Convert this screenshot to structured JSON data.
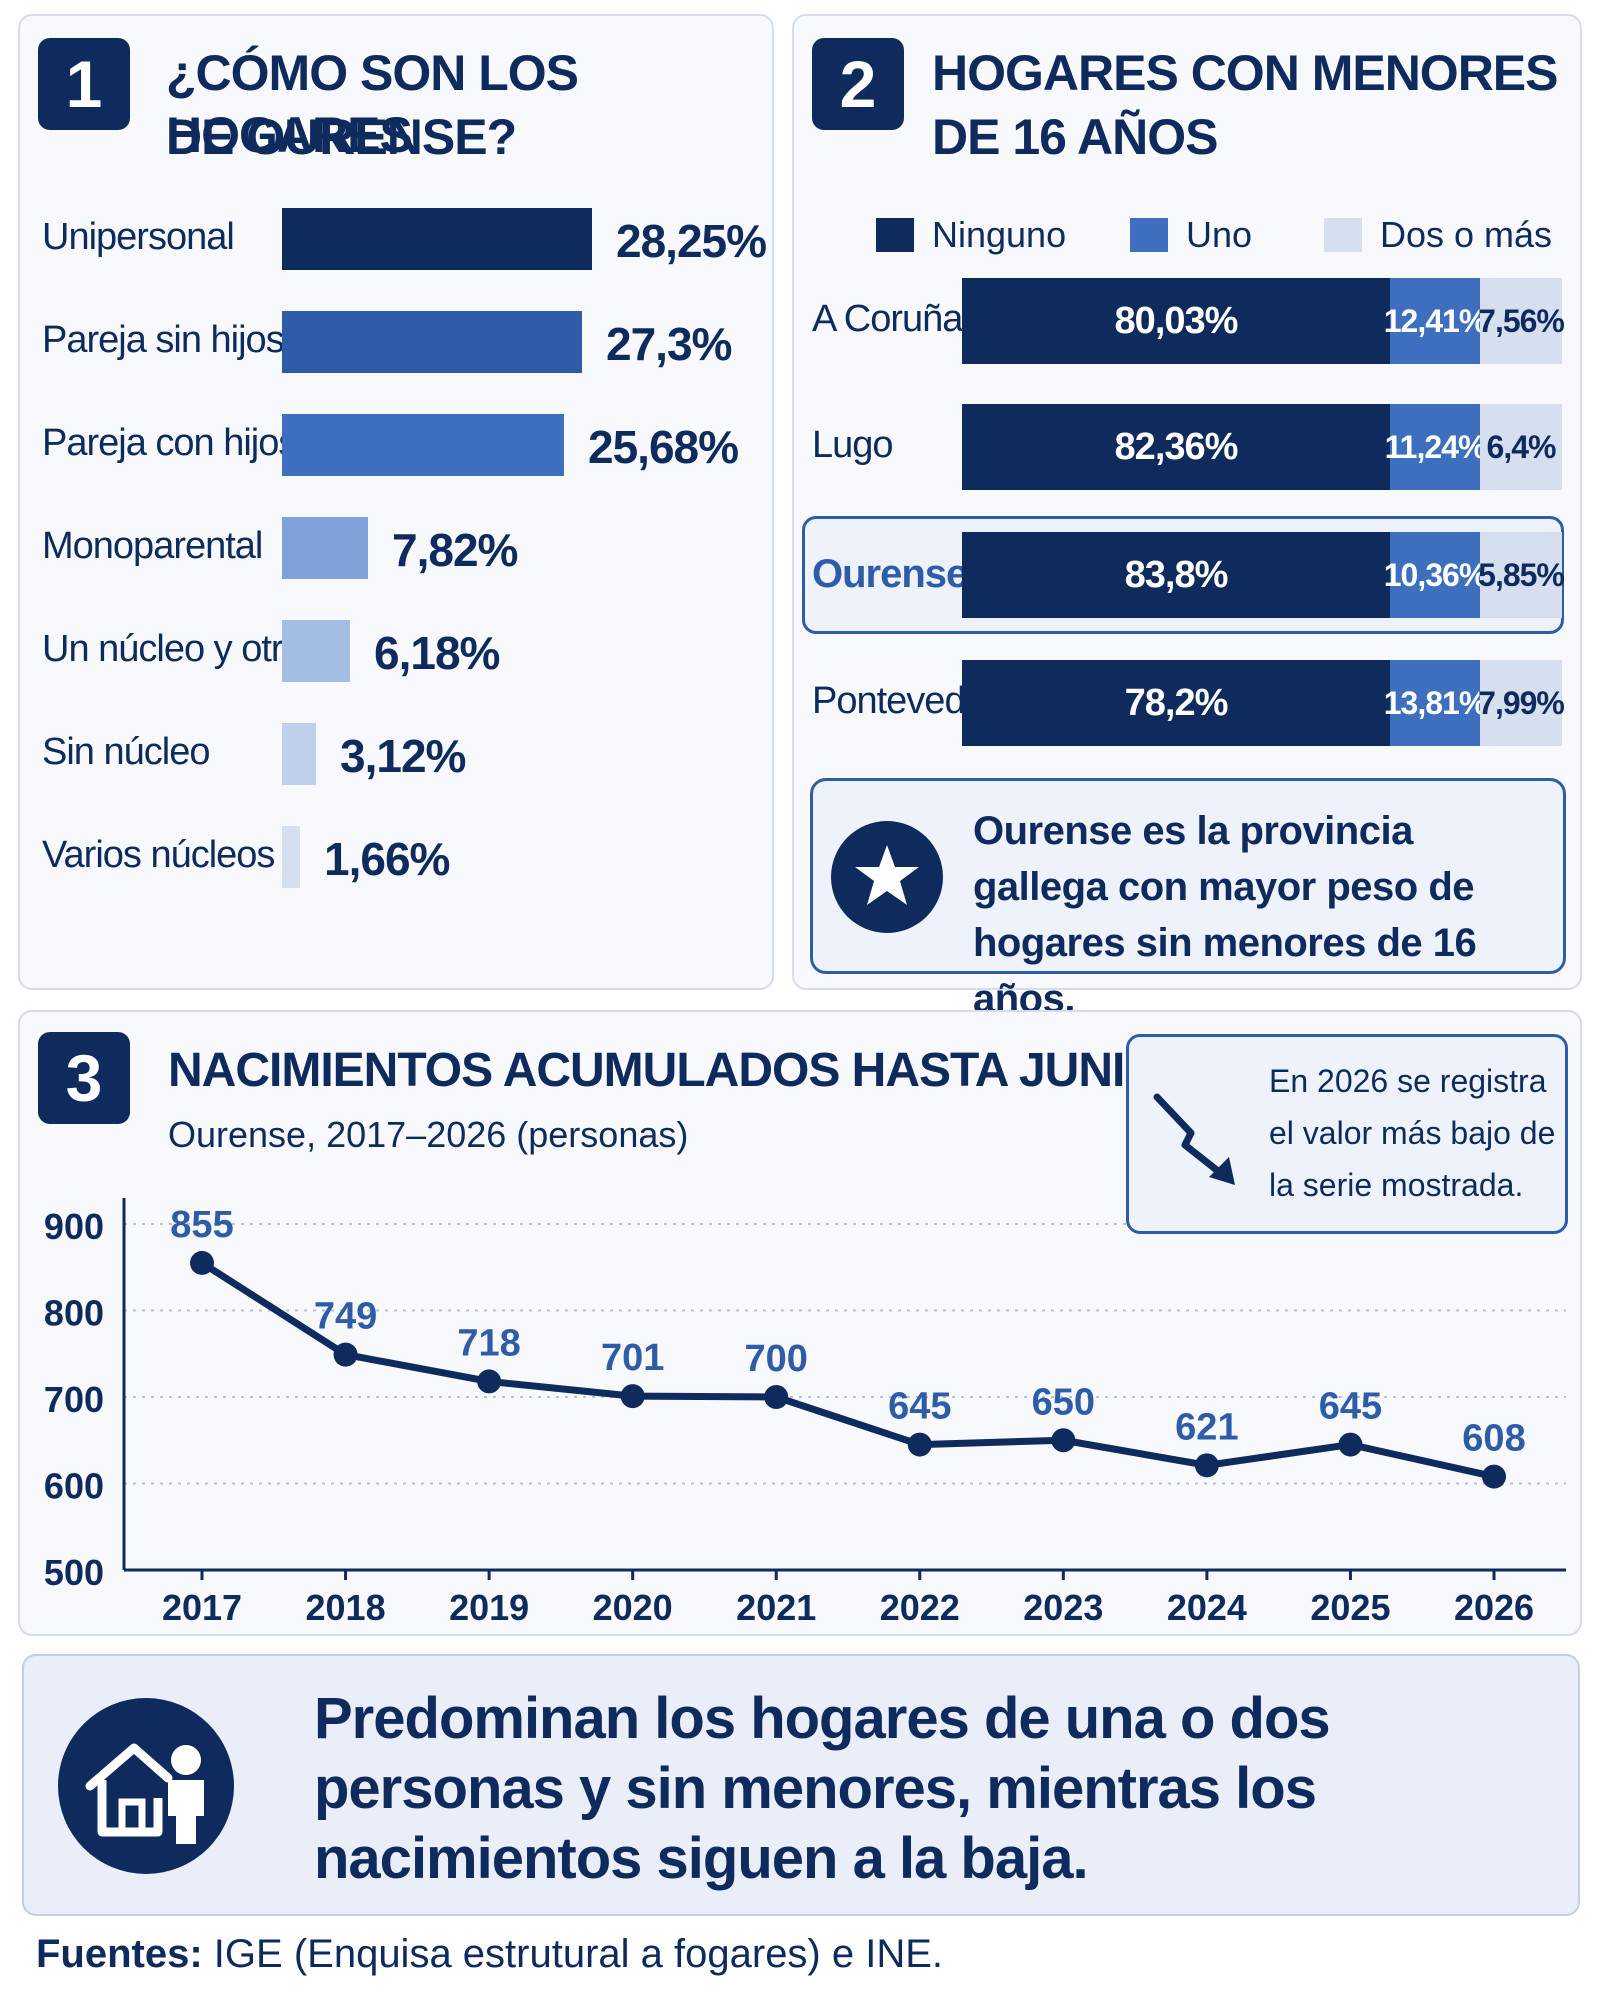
{
  "panel1": {
    "number": "1",
    "title_line1": "¿CÓMO SON LOS HOGARES",
    "title_line2": "DE OURENSE?"
  },
  "panel2": {
    "number": "2",
    "title_line1": "HOGARES CON MENORES",
    "title_line2": "DE 16 AÑOS",
    "callout": "Ourense es la provincia gallega con mayor peso de hogares sin menores de 16 años."
  },
  "panel3": {
    "number": "3",
    "title": "NACIMIENTOS ACUMULADOS HASTA JUNIO",
    "subtitle": "Ourense, 2017–2026 (personas)",
    "note": "En 2026 se registra el valor más bajo de la serie mostrada."
  },
  "summary": {
    "text": "Predominan los hogares de una o dos personas y sin menores, mientras los nacimientos siguen a la baja."
  },
  "sources": {
    "label": "Fuentes:",
    "text": " IGE (Enquisa estrutural a fogares) e INE."
  },
  "colors": {
    "navy": "#0f2a5c",
    "mid_blue": "#2f5ca8",
    "blue": "#3e6fbf",
    "light_blue": "#7fa3d8",
    "pale_blue": "#d6dff0"
  },
  "chart_data": [
    {
      "type": "bar",
      "orientation": "horizontal",
      "categories": [
        "Unipersonal",
        "Pareja sin hijos",
        "Pareja con hijos",
        "Monoparental",
        "Un núcleo y otros",
        "Sin núcleo",
        "Varios núcleos"
      ],
      "values": [
        28.25,
        27.3,
        25.68,
        7.82,
        6.18,
        3.12,
        1.66
      ],
      "value_labels": [
        "28,25%",
        "27,3%",
        "25,68%",
        "7,82%",
        "6,18%",
        "3,12%",
        "1,66%"
      ],
      "bar_colors": [
        "#0f2a5c",
        "#2f5ca8",
        "#3e6fbf",
        "#7fa3d8",
        "#a3bde3",
        "#bfd0ec",
        "#d6dff0"
      ]
    },
    {
      "type": "bar",
      "orientation": "horizontal",
      "stacked": true,
      "legend_position": "top",
      "categories": [
        "A Coruña",
        "Lugo",
        "Ourense",
        "Pontevedra"
      ],
      "highlight": "Ourense",
      "series": [
        {
          "name": "Ninguno",
          "color": "#0f2a5c",
          "values": [
            80.03,
            82.36,
            83.8,
            78.2
          ],
          "labels": [
            "80,03%",
            "82,36%",
            "83,8%",
            "78,2%"
          ]
        },
        {
          "name": "Uno",
          "color": "#3e6fbf",
          "values": [
            12.41,
            11.24,
            10.36,
            13.81
          ],
          "labels": [
            "12,41%",
            "11,24%",
            "10,36%",
            "13,81%"
          ]
        },
        {
          "name": "Dos o más",
          "color": "#d6dff0",
          "values": [
            7.56,
            6.4,
            5.85,
            7.99
          ],
          "labels": [
            "7,56%",
            "6,4%",
            "5,85%",
            "7,99%"
          ]
        }
      ]
    },
    {
      "type": "line",
      "x": [
        "2017",
        "2018",
        "2019",
        "2020",
        "2021",
        "2022",
        "2023",
        "2024",
        "2025",
        "2026"
      ],
      "y": [
        855,
        749,
        718,
        701,
        700,
        645,
        650,
        621,
        645,
        608
      ],
      "ylim": [
        500,
        900
      ],
      "yticks": [
        500,
        600,
        700,
        800,
        900
      ],
      "grid": true,
      "color": "#0f2a5c"
    }
  ]
}
